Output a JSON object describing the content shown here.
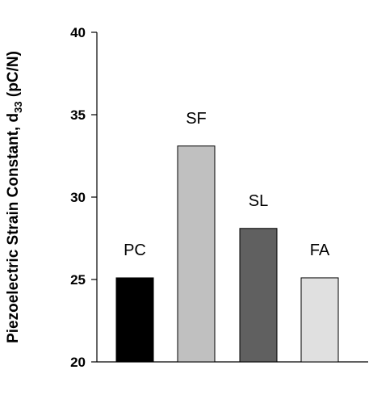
{
  "chart_data": {
    "type": "bar",
    "categories": [
      "PC",
      "SF",
      "SL",
      "FA"
    ],
    "values": [
      25.1,
      33.1,
      28.1,
      25.1
    ],
    "colors": [
      "#000000",
      "#c0c0c0",
      "#606060",
      "#e0e0e0"
    ],
    "ylabel": {
      "main": "Piezoelectric Strain Constant, d",
      "sub": "33",
      "unit": " (pC/N)"
    },
    "xlabel": "",
    "ylim": [
      20,
      40
    ],
    "yticks": [
      20,
      25,
      30,
      35,
      40
    ],
    "grid": false,
    "legend": "none"
  }
}
